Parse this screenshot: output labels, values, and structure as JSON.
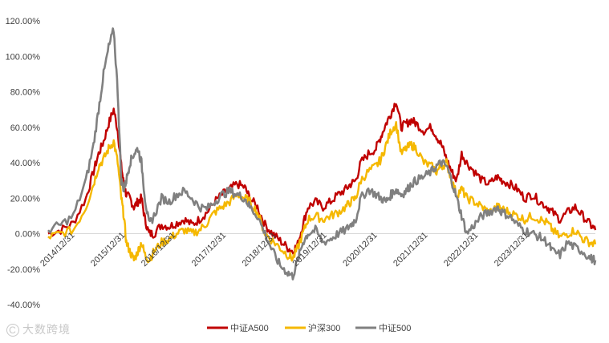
{
  "watermark": {
    "mark": "C",
    "text": "大数跨境"
  },
  "chart_data": {
    "type": "line",
    "title": "",
    "xlabel": "",
    "ylabel": "",
    "ylim": [
      -40,
      120
    ],
    "ytick_labels": [
      "120.00%",
      "100.00%",
      "80.00%",
      "60.00%",
      "40.00%",
      "20.00%",
      "0.00%",
      "-20.00%",
      "-40.00%"
    ],
    "ytick_values": [
      120,
      100,
      80,
      60,
      40,
      20,
      0,
      -20,
      -40
    ],
    "xtick_labels": [
      "2014/12/31",
      "2015/12/31",
      "2016/12/31",
      "2017/12/31",
      "2018/12/31",
      "2019/12/31",
      "2020/12/31",
      "2021/12/31",
      "2022/12/31",
      "2023/12/31"
    ],
    "x": [
      2014.0,
      2014.25,
      2014.5,
      2014.75,
      2014.9,
      2015.0,
      2015.1,
      2015.2,
      2015.3,
      2015.38,
      2015.45,
      2015.5,
      2015.55,
      2015.62,
      2015.7,
      2015.78,
      2015.85,
      2015.92,
      2016.0,
      2016.1,
      2016.25,
      2016.4,
      2016.55,
      2016.7,
      2016.85,
      2017.0,
      2017.15,
      2017.3,
      2017.45,
      2017.6,
      2017.75,
      2017.9,
      2018.0,
      2018.15,
      2018.3,
      2018.45,
      2018.6,
      2018.75,
      2018.85,
      2018.95,
      2019.05,
      2019.15,
      2019.3,
      2019.45,
      2019.6,
      2019.75,
      2019.9,
      2020.0,
      2020.1,
      2020.2,
      2020.35,
      2020.5,
      2020.6,
      2020.7,
      2020.8,
      2020.9,
      2021.0,
      2021.1,
      2021.2,
      2021.3,
      2021.45,
      2021.6,
      2021.7,
      2021.8,
      2021.9,
      2022.0,
      2022.1,
      2022.2,
      2022.3,
      2022.45,
      2022.6,
      2022.75,
      2022.9,
      2023.0,
      2023.15,
      2023.3,
      2023.45,
      2023.6,
      2023.75,
      2023.9,
      2024.0,
      2024.15,
      2024.3,
      2024.45,
      2024.6,
      2024.75,
      2024.85
    ],
    "legend_position": "bottom",
    "series": [
      {
        "name": "中证A500",
        "color": "#c00000",
        "values": [
          0,
          2,
          6,
          20,
          35,
          45,
          52,
          62,
          70,
          58,
          38,
          28,
          22,
          20,
          15,
          18,
          20,
          8,
          0,
          0,
          5,
          4,
          6,
          8,
          5,
          8,
          12,
          18,
          22,
          25,
          28,
          26,
          20,
          15,
          5,
          0,
          -4,
          -8,
          -10,
          -6,
          5,
          15,
          18,
          15,
          18,
          22,
          25,
          28,
          30,
          40,
          45,
          48,
          55,
          62,
          68,
          75,
          60,
          62,
          64,
          62,
          58,
          60,
          55,
          50,
          42,
          35,
          30,
          45,
          40,
          35,
          30,
          28,
          32,
          30,
          28,
          25,
          20,
          22,
          18,
          15,
          12,
          8,
          12,
          15,
          10,
          5,
          2
        ]
      },
      {
        "name": "沪深300",
        "color": "#f5b800",
        "values": [
          -2,
          0,
          2,
          15,
          28,
          38,
          42,
          48,
          52,
          40,
          20,
          10,
          -5,
          -10,
          -15,
          -10,
          -5,
          -12,
          -15,
          -10,
          -5,
          -3,
          0,
          2,
          0,
          2,
          6,
          12,
          15,
          18,
          22,
          20,
          18,
          12,
          0,
          -4,
          -8,
          -12,
          -14,
          -8,
          0,
          8,
          10,
          8,
          10,
          12,
          15,
          18,
          20,
          30,
          35,
          38,
          42,
          50,
          58,
          62,
          45,
          48,
          50,
          48,
          40,
          38,
          35,
          38,
          40,
          30,
          22,
          25,
          20,
          18,
          15,
          12,
          15,
          14,
          12,
          10,
          8,
          10,
          8,
          6,
          2,
          -2,
          0,
          2,
          -3,
          -5,
          -6
        ]
      },
      {
        "name": "中证500",
        "color": "#808080",
        "values": [
          2,
          5,
          10,
          30,
          50,
          70,
          90,
          105,
          115,
          80,
          30,
          25,
          30,
          40,
          45,
          48,
          40,
          20,
          5,
          10,
          20,
          18,
          22,
          24,
          20,
          15,
          14,
          18,
          22,
          24,
          22,
          20,
          15,
          10,
          0,
          -10,
          -18,
          -22,
          -24,
          -15,
          -5,
          0,
          2,
          -5,
          -3,
          0,
          2,
          5,
          8,
          20,
          25,
          22,
          20,
          18,
          22,
          25,
          22,
          24,
          28,
          30,
          32,
          35,
          38,
          40,
          38,
          30,
          20,
          10,
          0,
          5,
          10,
          12,
          15,
          12,
          10,
          5,
          2,
          0,
          -2,
          -5,
          -10,
          -12,
          -5,
          -8,
          -10,
          -14,
          -15
        ]
      }
    ]
  }
}
